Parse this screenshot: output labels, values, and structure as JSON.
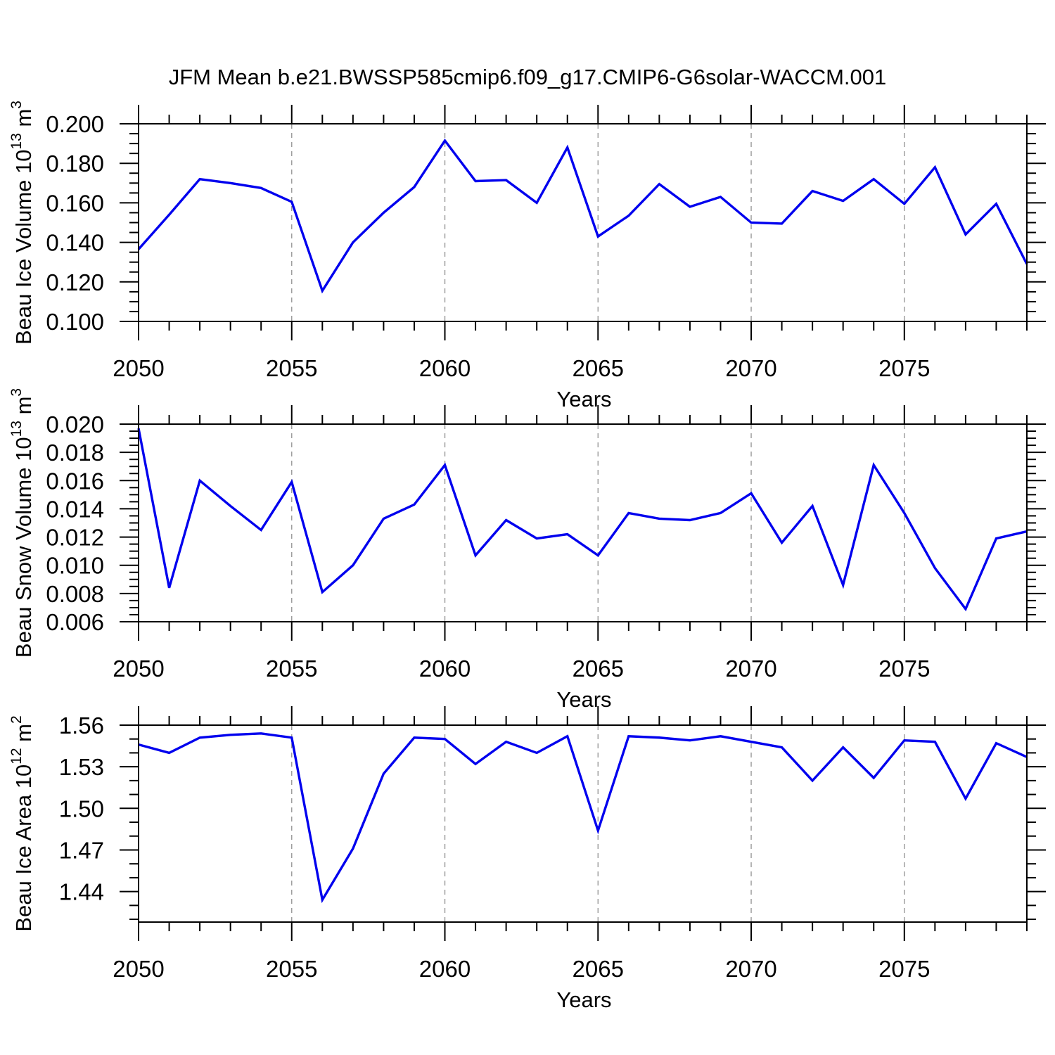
{
  "title": "JFM Mean b.e21.BWSSP585cmip6.f09_g17.CMIP6-G6solar-WACCM.001",
  "colors": {
    "line": "#0000ee",
    "grid": "#999999",
    "axis": "#000000",
    "text": "#000000",
    "background": "#ffffff"
  },
  "x_axis": {
    "label": "Years",
    "years": [
      2050,
      2051,
      2052,
      2053,
      2054,
      2055,
      2056,
      2057,
      2058,
      2059,
      2060,
      2061,
      2062,
      2063,
      2064,
      2065,
      2066,
      2067,
      2068,
      2069,
      2070,
      2071,
      2072,
      2073,
      2074,
      2075,
      2076,
      2077,
      2078,
      2079
    ],
    "xlim": [
      2050,
      2079
    ],
    "major_ticks": [
      2050,
      2055,
      2060,
      2065,
      2070,
      2075
    ],
    "tick_labels": [
      "2050",
      "2055",
      "2060",
      "2065",
      "2070",
      "2075"
    ],
    "gridline_years": [
      2055,
      2060,
      2065,
      2070,
      2075
    ]
  },
  "chart_data": [
    {
      "type": "line",
      "name": "beau-ice-volume",
      "ylabel_segments": [
        {
          "text": "Beau Ice Volume 10"
        },
        {
          "text": "13",
          "sup": true
        },
        {
          "text": " m"
        },
        {
          "text": "3",
          "sup": true
        }
      ],
      "xlabel": "Years",
      "ylim": [
        0.1,
        0.2
      ],
      "ytick_values": [
        0.1,
        0.12,
        0.14,
        0.16,
        0.18,
        0.2
      ],
      "ytick_labels": [
        "0.100",
        "0.120",
        "0.140",
        "0.160",
        "0.180",
        "0.200"
      ],
      "yminor_step": 0.005,
      "grid": "x-dashed",
      "legend": "none",
      "values": [
        0.1365,
        0.154,
        0.172,
        0.17,
        0.1675,
        0.1605,
        0.1155,
        0.14,
        0.155,
        0.168,
        0.1915,
        0.171,
        0.1715,
        0.16,
        0.188,
        0.143,
        0.1535,
        0.1695,
        0.158,
        0.163,
        0.15,
        0.1495,
        0.166,
        0.161,
        0.172,
        0.1595,
        0.178,
        0.144,
        0.1595,
        0.129
      ]
    },
    {
      "type": "line",
      "name": "beau-snow-volume",
      "ylabel_segments": [
        {
          "text": "Beau Snow Volume 10"
        },
        {
          "text": "13",
          "sup": true
        },
        {
          "text": " m"
        },
        {
          "text": "3",
          "sup": true
        }
      ],
      "xlabel": "Years",
      "ylim": [
        0.006,
        0.02
      ],
      "ytick_values": [
        0.006,
        0.008,
        0.01,
        0.012,
        0.014,
        0.016,
        0.018,
        0.02
      ],
      "ytick_labels": [
        "0.006",
        "0.008",
        "0.010",
        "0.012",
        "0.014",
        "0.016",
        "0.018",
        "0.020"
      ],
      "yminor_step": 0.0005,
      "grid": "x-dashed",
      "legend": "none",
      "values": [
        0.0197,
        0.0084,
        0.016,
        0.0142,
        0.0125,
        0.0159,
        0.0081,
        0.01,
        0.0133,
        0.0143,
        0.0171,
        0.0107,
        0.0132,
        0.0119,
        0.0122,
        0.0107,
        0.0137,
        0.0133,
        0.0132,
        0.0137,
        0.0151,
        0.0116,
        0.0142,
        0.0086,
        0.0171,
        0.0137,
        0.0098,
        0.0069,
        0.0119,
        0.0124
      ]
    },
    {
      "type": "line",
      "name": "beau-ice-area",
      "ylabel_segments": [
        {
          "text": "Beau Ice Area 10"
        },
        {
          "text": "12",
          "sup": true
        },
        {
          "text": " m"
        },
        {
          "text": "2",
          "sup": true
        }
      ],
      "xlabel": "Years",
      "ylim": [
        1.418,
        1.56
      ],
      "ytick_values": [
        1.44,
        1.47,
        1.5,
        1.53,
        1.56
      ],
      "ytick_labels": [
        "1.44",
        "1.47",
        "1.50",
        "1.53",
        "1.56"
      ],
      "yminor_step": 0.01,
      "grid": "x-dashed",
      "legend": "none",
      "values": [
        1.546,
        1.54,
        1.551,
        1.553,
        1.554,
        1.551,
        1.434,
        1.471,
        1.525,
        1.551,
        1.55,
        1.532,
        1.548,
        1.54,
        1.552,
        1.484,
        1.552,
        1.551,
        1.549,
        1.552,
        1.548,
        1.544,
        1.52,
        1.544,
        1.522,
        1.549,
        1.548,
        1.507,
        1.547,
        1.537
      ]
    }
  ]
}
